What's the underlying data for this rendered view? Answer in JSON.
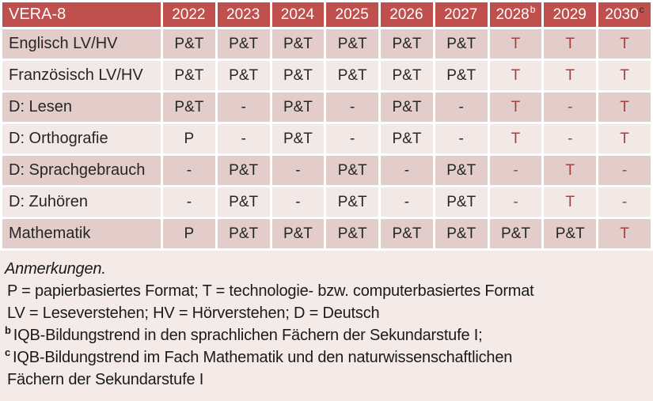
{
  "table": {
    "header": {
      "title": "VERA-8",
      "years": [
        {
          "label": "2022",
          "sup": ""
        },
        {
          "label": "2023",
          "sup": ""
        },
        {
          "label": "2024",
          "sup": ""
        },
        {
          "label": "2025",
          "sup": ""
        },
        {
          "label": "2026",
          "sup": ""
        },
        {
          "label": "2027",
          "sup": ""
        },
        {
          "label": "2028",
          "sup": "b"
        },
        {
          "label": "2029",
          "sup": ""
        },
        {
          "label": "2030",
          "sup": "c"
        }
      ]
    },
    "rows": [
      {
        "label": "Englisch LV/HV",
        "cells": [
          "P&T",
          "P&T",
          "P&T",
          "P&T",
          "P&T",
          "P&T",
          "T",
          "T",
          "T"
        ]
      },
      {
        "label": "Französisch LV/HV",
        "cells": [
          "P&T",
          "P&T",
          "P&T",
          "P&T",
          "P&T",
          "P&T",
          "T",
          "T",
          "T"
        ]
      },
      {
        "label": "D: Lesen",
        "cells": [
          "P&T",
          "-",
          "P&T",
          "-",
          "P&T",
          "-",
          "T",
          "-",
          "T"
        ]
      },
      {
        "label": "D: Orthografie",
        "cells": [
          "P",
          "-",
          "P&T",
          "-",
          "P&T",
          "-",
          "T",
          "-",
          "T"
        ]
      },
      {
        "label": "D: Sprachgebrauch",
        "cells": [
          "-",
          "P&T",
          "-",
          "P&T",
          "-",
          "P&T",
          "-",
          "T",
          "-"
        ]
      },
      {
        "label": "D: Zuhören",
        "cells": [
          "-",
          "P&T",
          "-",
          "P&T",
          "-",
          "P&T",
          "-",
          "T",
          "-"
        ]
      },
      {
        "label": "Mathematik",
        "cells": [
          "P",
          "P&T",
          "P&T",
          "P&T",
          "P&T",
          "P&T",
          "P&T",
          "P&T",
          "T"
        ]
      }
    ]
  },
  "notes": {
    "heading": "Anmerkungen.",
    "lines": [
      {
        "sup": "",
        "text": "P = papierbasiertes Format; T = technologie- bzw. computerbasiertes Format"
      },
      {
        "sup": "",
        "text": "LV = Leseverstehen; HV = Hörverstehen; D = Deutsch"
      },
      {
        "sup": "b",
        "text": "IQB-Bildungstrend in den sprachlichen Fächern der Sekundarstufe I;"
      },
      {
        "sup": "c",
        "text": "IQB-Bildungstrend im Fach Mathematik und den naturwissenschaftlichen"
      },
      {
        "sup": "",
        "text": "Fächern der Sekundarstufe I"
      }
    ]
  },
  "colors": {
    "header_bg": "#c0504d",
    "band_dark": "#e2cdca",
    "band_light": "#f2e9e7",
    "notes_bg": "#f4ebe9",
    "grid": "#ffffff",
    "text_dark": "#262626",
    "text_red": "#9a4542"
  }
}
